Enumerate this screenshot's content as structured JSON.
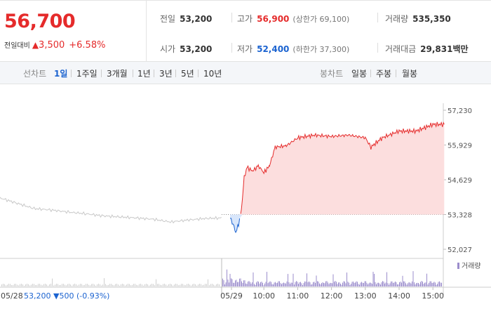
{
  "quote": {
    "price": "56,700",
    "change_label": "전일대비",
    "change_arrow": "▲",
    "change_amount": "3,500",
    "change_pct": "+6.58%"
  },
  "stats": {
    "prev_close": {
      "label": "전일",
      "value": "53,200"
    },
    "high": {
      "label": "고가",
      "value": "56,900",
      "sub": "(상한가 69,100)"
    },
    "volume": {
      "label": "거래량",
      "value": "535,350"
    },
    "open": {
      "label": "시가",
      "value": "53,200"
    },
    "low": {
      "label": "저가",
      "value": "52,400",
      "sub": "(하한가 37,300)"
    },
    "amount": {
      "label": "거래대금",
      "value": "29,831",
      "unit": "백만"
    }
  },
  "tabs": {
    "line_label": "선차트",
    "line_items": [
      "1일",
      "1주일",
      "3개월",
      "1년",
      "3년",
      "5년",
      "10년"
    ],
    "active": "1일",
    "candle_label": "봉차트",
    "candle_items": [
      "일봉",
      "주봉",
      "월봉"
    ]
  },
  "chart_data": {
    "type": "line",
    "y_ticks": [
      "57,230",
      "55,929",
      "54,629",
      "53,328",
      "52,027"
    ],
    "ylim": [
      52027,
      57230
    ],
    "baseline": 53328,
    "x_ticks": [
      "05/29",
      "10:00",
      "11:00",
      "12:00",
      "13:00",
      "14:00",
      "15:00"
    ],
    "prev_day_label": "05/28",
    "prev_day_close": "53,200",
    "prev_day_change": "▼500",
    "prev_day_pct": "(-0.93%)",
    "volume_legend": "거래량",
    "prev_day_series": [
      [
        "09:00",
        53950
      ],
      [
        "09:30",
        53750
      ],
      [
        "10:00",
        53550
      ],
      [
        "10:30",
        53500
      ],
      [
        "11:00",
        53420
      ],
      [
        "11:30",
        53360
      ],
      [
        "12:00",
        53280
      ],
      [
        "12:30",
        53240
      ],
      [
        "13:00",
        53200
      ],
      [
        "13:30",
        53150
      ],
      [
        "14:00",
        53050
      ],
      [
        "14:30",
        53120
      ],
      [
        "15:00",
        53180
      ],
      [
        "15:30",
        53200
      ]
    ],
    "today_series": [
      [
        "09:00",
        53200
      ],
      [
        "09:05",
        53000
      ],
      [
        "09:10",
        52650
      ],
      [
        "09:15",
        52950
      ],
      [
        "09:20",
        53500
      ],
      [
        "09:25",
        54700
      ],
      [
        "09:30",
        55100
      ],
      [
        "09:40",
        54950
      ],
      [
        "09:50",
        55150
      ],
      [
        "10:00",
        54900
      ],
      [
        "10:10",
        55150
      ],
      [
        "10:20",
        55850
      ],
      [
        "10:40",
        55900
      ],
      [
        "11:00",
        56200
      ],
      [
        "11:30",
        56300
      ],
      [
        "12:00",
        56250
      ],
      [
        "12:30",
        56300
      ],
      [
        "13:00",
        56200
      ],
      [
        "13:10",
        55850
      ],
      [
        "13:30",
        56200
      ],
      [
        "14:00",
        56450
      ],
      [
        "14:30",
        56450
      ],
      [
        "15:00",
        56700
      ],
      [
        "15:20",
        56700
      ]
    ]
  },
  "colors": {
    "up": "#e52b2b",
    "down": "#1b63d0",
    "prev_line": "#c8c8c8",
    "fill_up": "#fcdede",
    "volume_bar": "#9b8dcc"
  }
}
